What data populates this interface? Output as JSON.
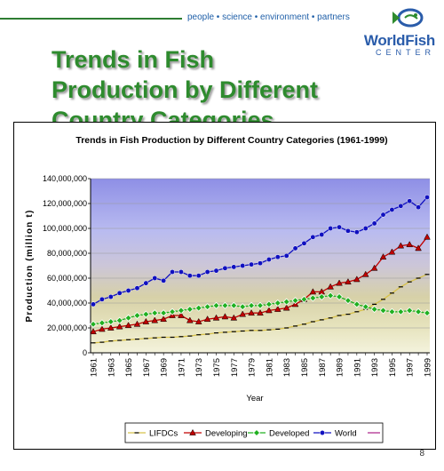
{
  "header": {
    "tagline": "people • science • environment • partners",
    "logo_name": "WorldFish",
    "logo_sub": "CENTER"
  },
  "slide": {
    "title": "Trends in Fish Production by Different Country Categories",
    "page_number": "8"
  },
  "colors": {
    "title_green": "#2e8b2e",
    "lifdcs": "#d8c24a",
    "developing": "#c00000",
    "developed": "#20b020",
    "world": "#1010c0"
  },
  "chart_data": {
    "type": "line",
    "title": "Trends in Fish Production by Different Country Categories (1961-1999)",
    "xlabel": "Year",
    "ylabel": "Production (million t)",
    "ylim": [
      0,
      140000000
    ],
    "yticks": [
      "0",
      "20,000,000",
      "40,000,000",
      "60,000,000",
      "80,000,000",
      "100,000,000",
      "120,000,000",
      "140,000,000"
    ],
    "xtick_labels": [
      "1961",
      "1963",
      "1965",
      "1967",
      "1969",
      "1971",
      "1973",
      "1975",
      "1977",
      "1979",
      "1981",
      "1983",
      "1985",
      "1987",
      "1989",
      "1991",
      "1993",
      "1995",
      "1997",
      "1999"
    ],
    "x": [
      1961,
      1962,
      1963,
      1964,
      1965,
      1966,
      1967,
      1968,
      1969,
      1970,
      1971,
      1972,
      1973,
      1974,
      1975,
      1976,
      1977,
      1978,
      1979,
      1980,
      1981,
      1982,
      1983,
      1984,
      1985,
      1986,
      1987,
      1988,
      1989,
      1990,
      1991,
      1992,
      1993,
      1994,
      1995,
      1996,
      1997,
      1998,
      1999
    ],
    "legend_position": "bottom",
    "series": [
      {
        "name": "LIFDCs",
        "color": "#d8c24a",
        "marker": "dash",
        "values": [
          8000000,
          8500000,
          9500000,
          10000000,
          10500000,
          11000000,
          11500000,
          12000000,
          12500000,
          12500000,
          13000000,
          13500000,
          14500000,
          15000000,
          16000000,
          16500000,
          17000000,
          17500000,
          18000000,
          18000000,
          18500000,
          19000000,
          20000000,
          21500000,
          23000000,
          25000000,
          26500000,
          28000000,
          30000000,
          31000000,
          33000000,
          35000000,
          39000000,
          43000000,
          48000000,
          53000000,
          57000000,
          60000000,
          63000000
        ]
      },
      {
        "name": "Developing",
        "color": "#c00000",
        "marker": "triangle",
        "values": [
          17000000,
          19000000,
          20000000,
          21000000,
          22000000,
          23000000,
          25000000,
          26000000,
          27000000,
          30000000,
          30000000,
          26000000,
          25000000,
          27000000,
          28000000,
          29000000,
          28000000,
          31000000,
          32000000,
          32000000,
          34000000,
          35000000,
          36000000,
          39000000,
          43000000,
          49000000,
          49000000,
          53000000,
          56000000,
          57000000,
          59000000,
          63000000,
          68000000,
          77000000,
          81000000,
          86000000,
          87000000,
          84000000,
          93000000
        ]
      },
      {
        "name": "Developed",
        "color": "#20b020",
        "marker": "diamond",
        "values": [
          23000000,
          24000000,
          25000000,
          26000000,
          28000000,
          30000000,
          31000000,
          32000000,
          32000000,
          33000000,
          34000000,
          35000000,
          36000000,
          37000000,
          38000000,
          38000000,
          38000000,
          37000000,
          38000000,
          38000000,
          39000000,
          40000000,
          41000000,
          42000000,
          43000000,
          44000000,
          45000000,
          46000000,
          45000000,
          42000000,
          39000000,
          37000000,
          35000000,
          34000000,
          33000000,
          33000000,
          34000000,
          33000000,
          32000000
        ]
      },
      {
        "name": "World",
        "color": "#1010c0",
        "marker": "circle",
        "values": [
          39000000,
          43000000,
          45000000,
          48000000,
          50000000,
          52000000,
          56000000,
          60000000,
          58000000,
          65000000,
          65000000,
          62000000,
          62000000,
          65000000,
          66000000,
          68000000,
          69000000,
          70000000,
          71000000,
          72000000,
          75000000,
          77000000,
          78000000,
          84000000,
          88000000,
          93000000,
          95000000,
          100000000,
          101000000,
          98000000,
          97000000,
          100000000,
          104000000,
          111000000,
          115000000,
          118000000,
          122000000,
          117000000,
          125000000
        ]
      }
    ]
  }
}
